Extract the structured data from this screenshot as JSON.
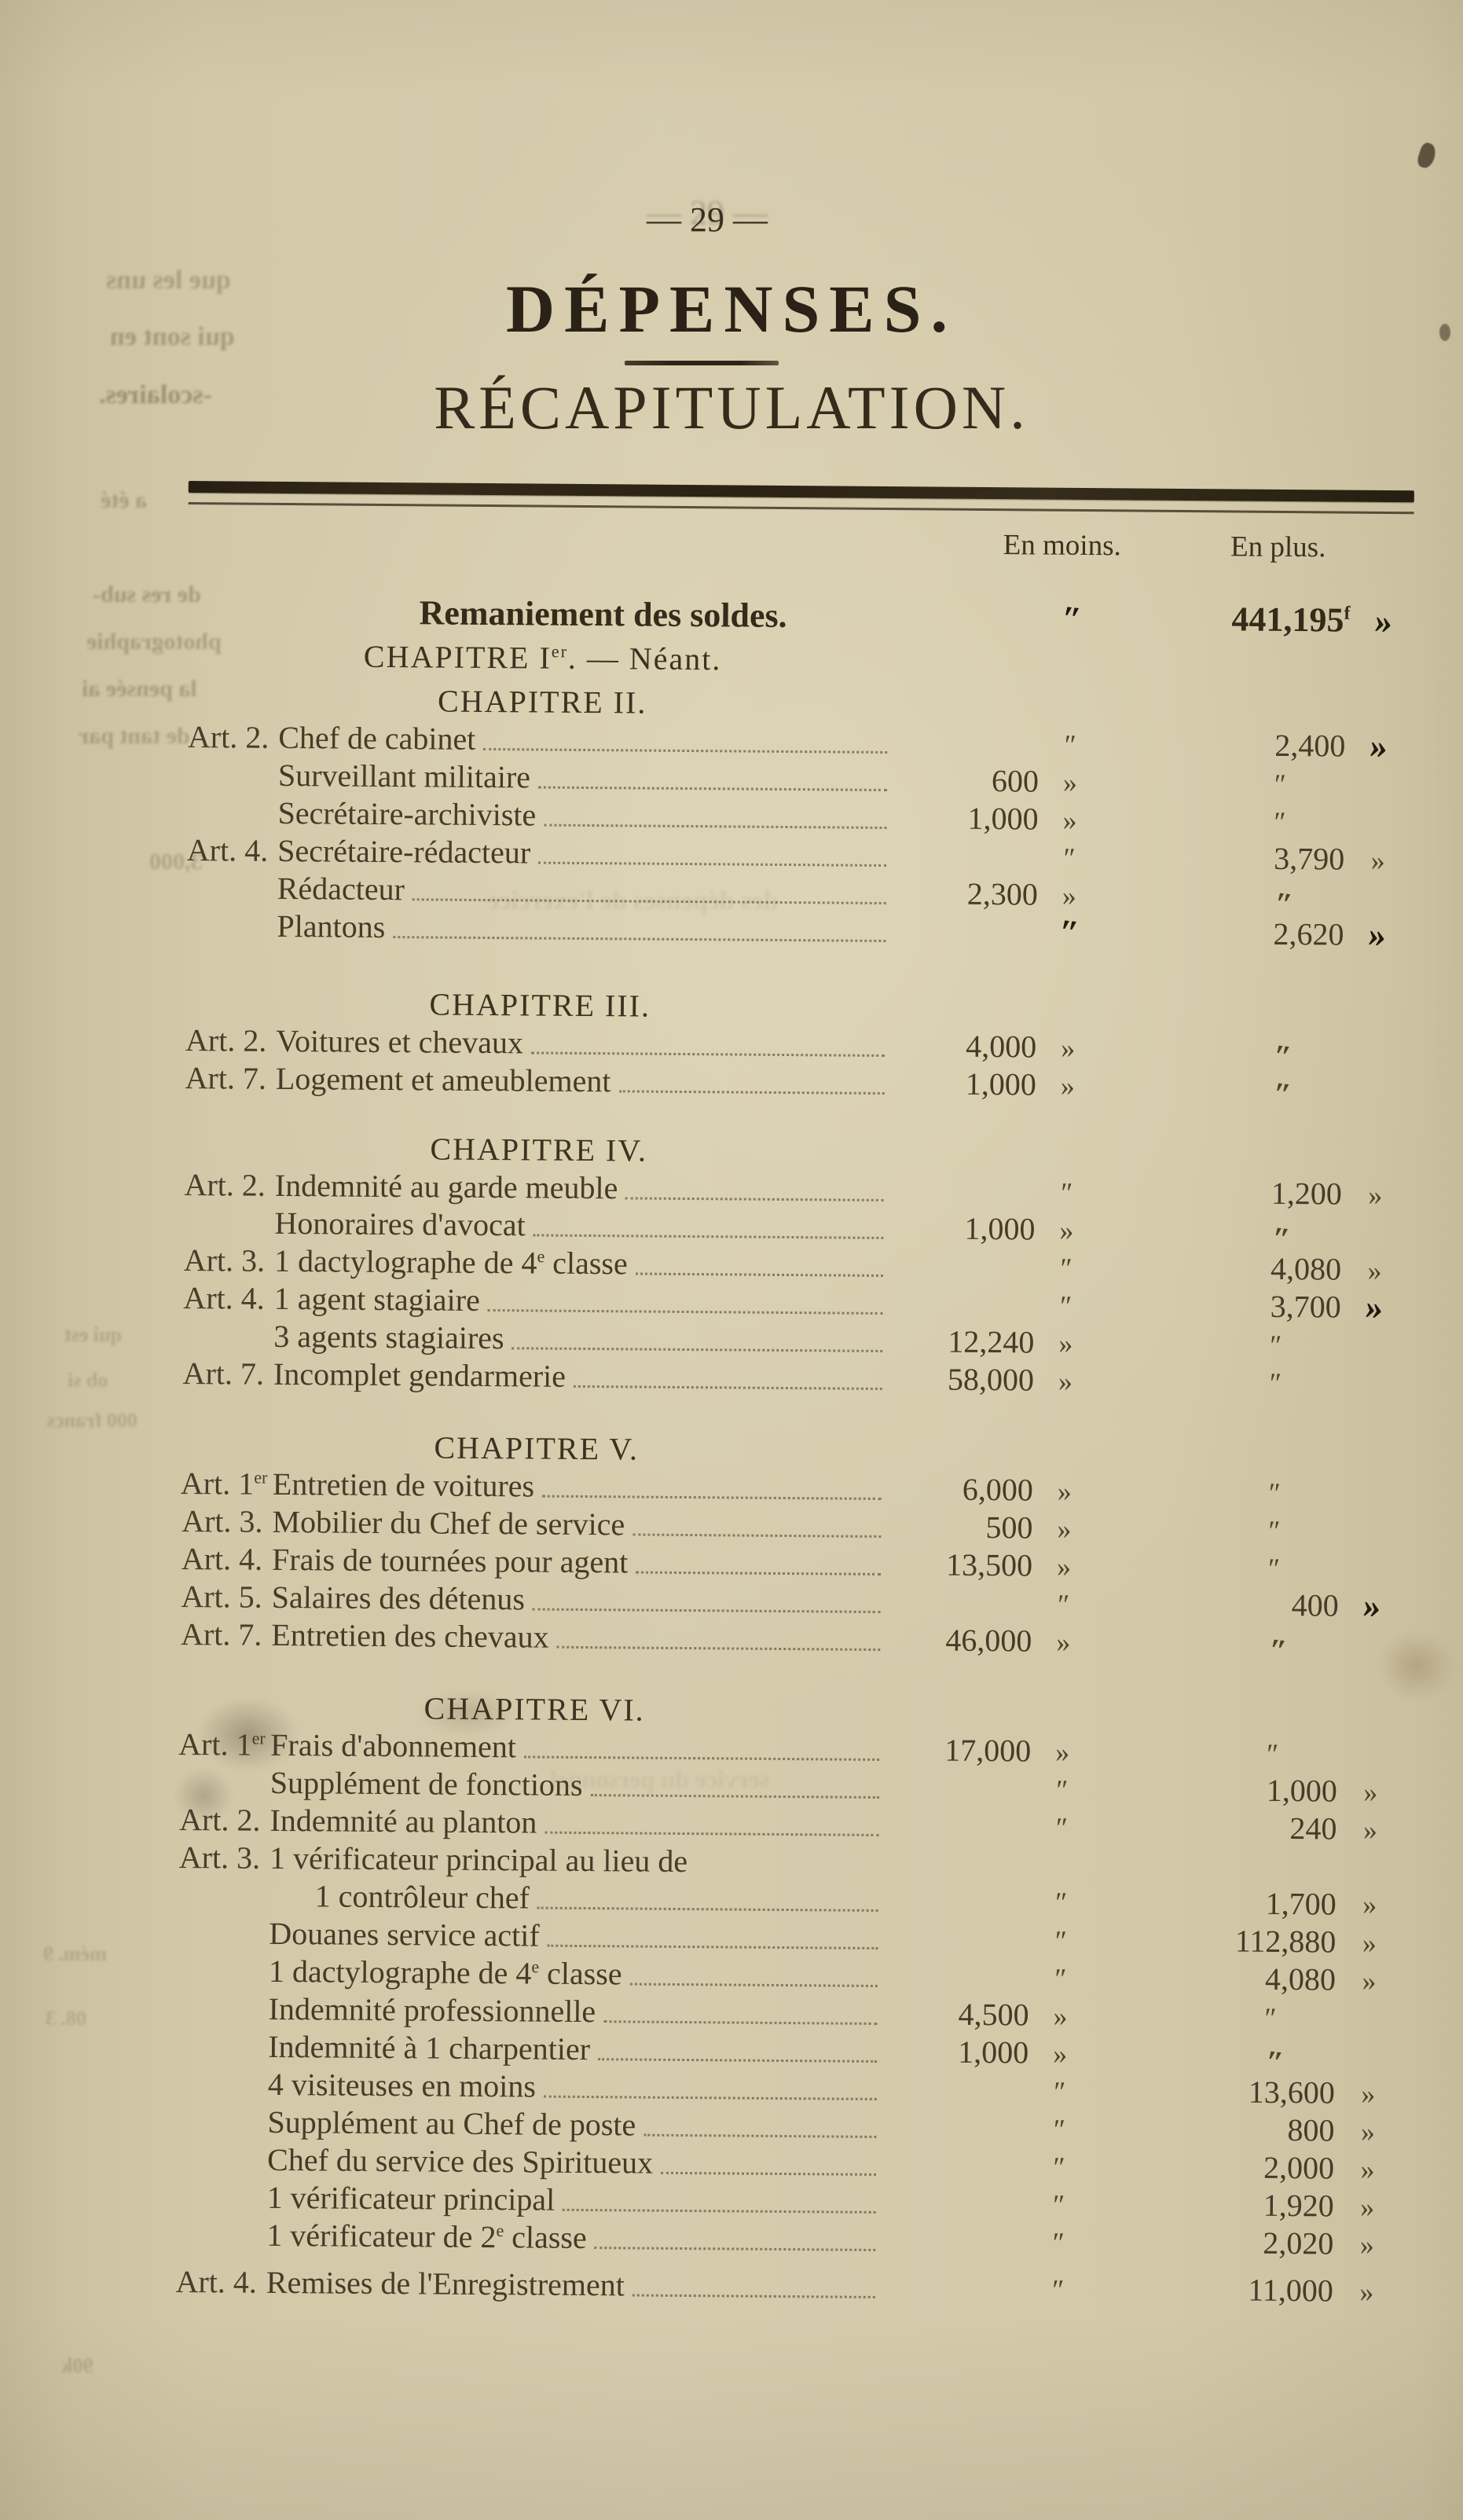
{
  "page": {
    "number_line": "— 29 —",
    "title": "DÉPENSES.",
    "subtitle": "RÉCAPITULATION."
  },
  "columns": {
    "en_moins": "En moins.",
    "en_plus": "En plus."
  },
  "summary": {
    "label": "Remaniement des soldes.",
    "moins_mark": "″",
    "plus": "441,195^f^",
    "plus_mark": "»"
  },
  "chapter_none": "CHAPITRE I^er^. — Néant.",
  "sections": [
    {
      "heading": "CHAPITRE II.",
      "rows": [
        {
          "art": "Art. 2.",
          "label": "Chef de cabinet",
          "moins": "",
          "moins_mark": "″",
          "plus": "2,400",
          "plus_mark": "»"
        },
        {
          "art": "",
          "label": "Surveillant militaire",
          "moins": "600",
          "moins_mark": "»",
          "plus": "″",
          "plus_mark": ""
        },
        {
          "art": "",
          "label": "Secrétaire-archiviste",
          "moins": "1,000",
          "moins_mark": "»",
          "plus": "″",
          "plus_mark": ""
        },
        {
          "art": "Art. 4.",
          "label": "Secrétaire-rédacteur",
          "moins": "",
          "moins_mark": "″",
          "plus": "3,790",
          "plus_mark": "»"
        },
        {
          "art": "",
          "label": "Rédacteur",
          "moins": "2,300",
          "moins_mark": "»",
          "plus": "″",
          "plus_mark": ""
        },
        {
          "art": "",
          "label": "Plantons",
          "moins": "",
          "moins_mark": "″",
          "plus": "2,620",
          "plus_mark": "»"
        }
      ]
    },
    {
      "heading": "CHAPITRE III.",
      "rows": [
        {
          "art": "Art. 2.",
          "label": "Voitures et chevaux",
          "moins": "4,000",
          "moins_mark": "»",
          "plus": "″",
          "plus_mark": ""
        },
        {
          "art": "Art. 7.",
          "label": "Logement et ameublement",
          "moins": "1,000",
          "moins_mark": "»",
          "plus": "″",
          "plus_mark": ""
        }
      ]
    },
    {
      "heading": "CHAPITRE IV.",
      "rows": [
        {
          "art": "Art. 2.",
          "label": "Indemnité au garde meuble",
          "moins": "",
          "moins_mark": "″",
          "plus": "1,200",
          "plus_mark": "»"
        },
        {
          "art": "",
          "label": "Honoraires d'avocat",
          "moins": "1,000",
          "moins_mark": "»",
          "plus": "″",
          "plus_mark": ""
        },
        {
          "art": "Art. 3.",
          "label": "1 dactylographe de 4^e^ classe",
          "moins": "",
          "moins_mark": "″",
          "plus": "4,080",
          "plus_mark": "»"
        },
        {
          "art": "Art. 4.",
          "label": "1 agent stagiaire",
          "moins": "",
          "moins_mark": "″",
          "plus": "3,700",
          "plus_mark": "»"
        },
        {
          "art": "",
          "label": "3 agents stagiaires",
          "moins": "12,240",
          "moins_mark": "»",
          "plus": "″",
          "plus_mark": ""
        },
        {
          "art": "Art. 7.",
          "label": "Incomplet gendarmerie",
          "moins": "58,000",
          "moins_mark": "»",
          "plus": "″",
          "plus_mark": ""
        }
      ]
    },
    {
      "heading": "CHAPITRE V.",
      "rows": [
        {
          "art": "Art. 1^er^",
          "label": "Entretien de voitures",
          "moins": "6,000",
          "moins_mark": "»",
          "plus": "″",
          "plus_mark": ""
        },
        {
          "art": "Art. 3.",
          "label": "Mobilier du Chef de service",
          "moins": "500",
          "moins_mark": "»",
          "plus": "″",
          "plus_mark": ""
        },
        {
          "art": "Art. 4.",
          "label": "Frais de tournées pour agent",
          "moins": "13,500",
          "moins_mark": "»",
          "plus": "″",
          "plus_mark": ""
        },
        {
          "art": "Art. 5.",
          "label": "Salaires des détenus",
          "moins": "",
          "moins_mark": "″",
          "plus": "400",
          "plus_mark": "»"
        },
        {
          "art": "Art. 7.",
          "label": "Entretien des chevaux",
          "moins": "46,000",
          "moins_mark": "»",
          "plus": "″",
          "plus_mark": ""
        }
      ]
    },
    {
      "heading": "CHAPITRE VI.",
      "rows": [
        {
          "art": "Art. 1^er^",
          "label": "Frais d'abonnement",
          "moins": "17,000",
          "moins_mark": "»",
          "plus": "″",
          "plus_mark": ""
        },
        {
          "art": "",
          "label": "Supplément de fonctions",
          "moins": "",
          "moins_mark": "″",
          "plus": "1,000",
          "plus_mark": "»"
        },
        {
          "art": "Art. 2.",
          "label": "Indemnité au planton",
          "moins": "",
          "moins_mark": "″",
          "plus": "240",
          "plus_mark": "»"
        },
        {
          "art": "Art. 3.",
          "label": "1 vérificateur principal au lieu de",
          "label2": "1 contrôleur chef",
          "moins": "",
          "moins_mark": "″",
          "plus": "1,700",
          "plus_mark": "»"
        },
        {
          "art": "",
          "label": "Douanes service actif",
          "moins": "",
          "moins_mark": "″",
          "plus": "112,880",
          "plus_mark": "»"
        },
        {
          "art": "",
          "label": "1 dactylographe de 4^e^ classe",
          "moins": "",
          "moins_mark": "″",
          "plus": "4,080",
          "plus_mark": "»"
        },
        {
          "art": "",
          "label": "Indemnité professionnelle",
          "moins": "4,500",
          "moins_mark": "»",
          "plus": "″",
          "plus_mark": ""
        },
        {
          "art": "",
          "label": "Indemnité à 1 charpentier",
          "moins": "1,000",
          "moins_mark": "»",
          "plus": "″",
          "plus_mark": ""
        },
        {
          "art": "",
          "label": "4 visiteuses en moins",
          "moins": "",
          "moins_mark": "″",
          "plus": "13,600",
          "plus_mark": "»"
        },
        {
          "art": "",
          "label": "Supplément au Chef de poste",
          "moins": "",
          "moins_mark": "″",
          "plus": "800",
          "plus_mark": "»"
        },
        {
          "art": "",
          "label": "Chef du service des Spiritueux",
          "moins": "",
          "moins_mark": "″",
          "plus": "2,000",
          "plus_mark": "»"
        },
        {
          "art": "",
          "label": "1 vérificateur principal",
          "moins": "",
          "moins_mark": "″",
          "plus": "1,920",
          "plus_mark": "»"
        },
        {
          "art": "",
          "label": "1 vérificateur de 2^e^ classe",
          "moins": "",
          "moins_mark": "″",
          "plus": "2,020",
          "plus_mark": "»"
        },
        {
          "art": "Art. 4.",
          "label": "Remises de l'Enregistrement",
          "moins": "",
          "moins_mark": "″",
          "plus": "11,000",
          "plus_mark": "»"
        }
      ]
    }
  ],
  "ghosts": [
    {
      "text": "que les uns"
    },
    {
      "text": "qui sont en"
    },
    {
      "text": "-scolaires."
    },
    {
      "text": "a été"
    },
    {
      "text": "de res sub-"
    },
    {
      "text": "photographie"
    },
    {
      "text": "la pensée ai"
    },
    {
      "text": "de tant par"
    },
    {
      "text": "3,000"
    },
    {
      "text": "000 francs"
    },
    {
      "text": "qui est"
    },
    {
      "text": "ob si"
    },
    {
      "text": "mém. 9"
    },
    {
      "text": "08. 3"
    },
    {
      "text": "90k"
    },
    {
      "text": "des dépenses de l'exercice"
    },
    {
      "text": "service du personnel"
    }
  ],
  "colors": {
    "paper": "#d2c8a8",
    "ink": "#3b3021",
    "rule": "#2c2416"
  }
}
